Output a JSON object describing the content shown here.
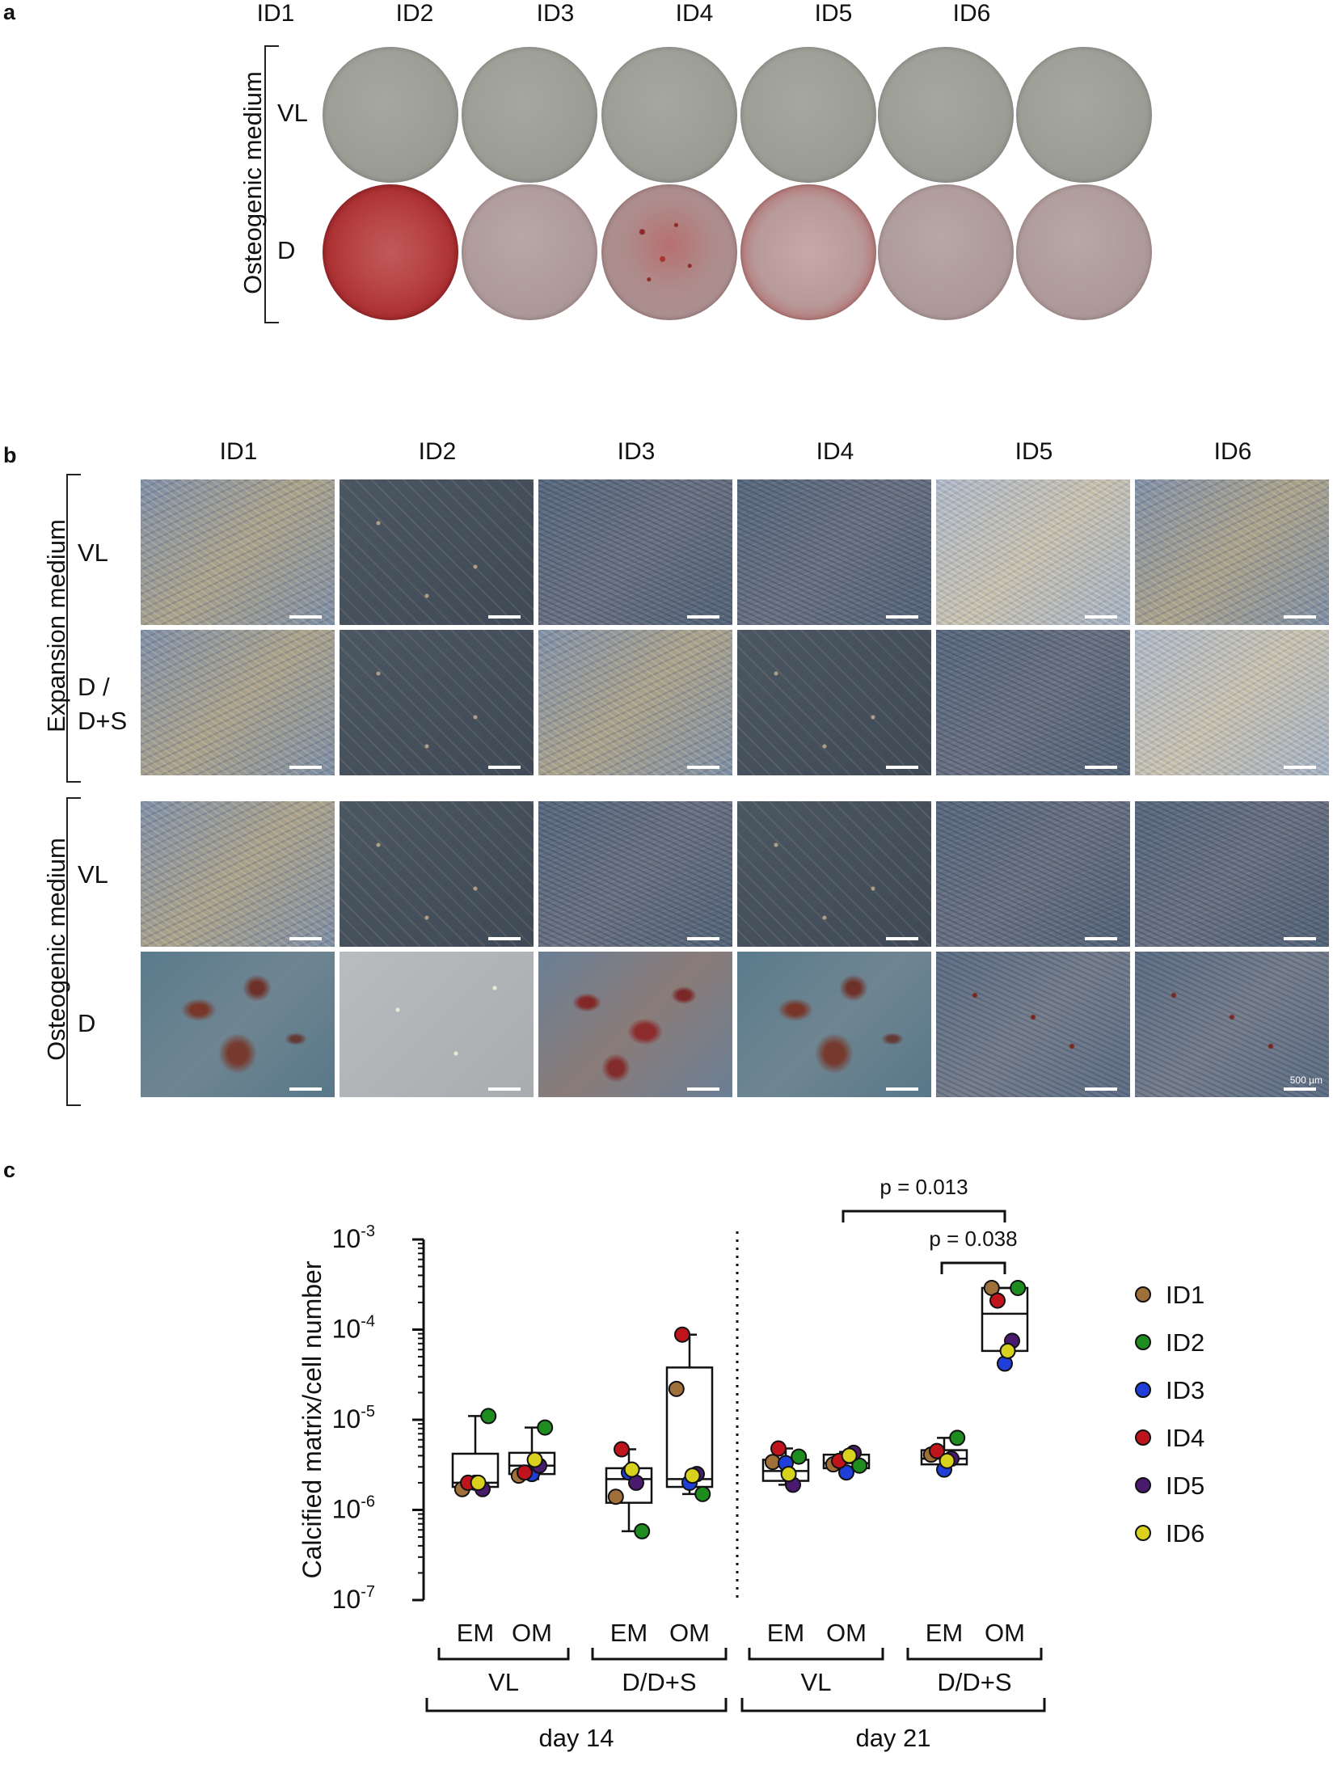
{
  "panel_a": {
    "letter": "a",
    "columns": [
      "ID1",
      "ID2",
      "ID3",
      "ID4",
      "ID5",
      "ID6"
    ],
    "group_label": "Osteogenic medium",
    "rows": [
      "VL",
      "D"
    ]
  },
  "panel_b": {
    "letter": "b",
    "columns": [
      "ID1",
      "ID2",
      "ID3",
      "ID4",
      "ID5",
      "ID6"
    ],
    "groups": [
      "Expansion medium",
      "Osteogenic medium"
    ],
    "rows_expansion": [
      "VL",
      "D /",
      "D+S"
    ],
    "rows_osteogenic": [
      "VL",
      "D"
    ],
    "scale_label": "500 µm"
  },
  "panel_c": {
    "letter": "c"
  },
  "chart_data": {
    "type": "scatter",
    "ylabel": "Calcified matrix/cell number",
    "yscale": "log",
    "ylim": [
      1e-07,
      0.001
    ],
    "ytick_bases": [
      "10",
      "10",
      "10",
      "10",
      "10"
    ],
    "ytick_exponents": [
      "-3",
      "-4",
      "-5",
      "-6",
      "-7"
    ],
    "ytick_values": [
      0.001,
      0.0001,
      1e-05,
      1e-06,
      1e-07
    ],
    "xtick_labels": [
      "EM",
      "OM",
      "EM",
      "OM",
      "EM",
      "OM",
      "EM",
      "OM"
    ],
    "subgroups": [
      "VL",
      "D/D+S",
      "VL",
      "D/D+S"
    ],
    "groups": [
      "day 14",
      "day 21"
    ],
    "annotations": [
      "p = 0.013",
      "p = 0.038"
    ],
    "legend": {
      "position": "right",
      "items": [
        {
          "label": "ID1",
          "color": "#a0703a"
        },
        {
          "label": "ID2",
          "color": "#1e8c1e"
        },
        {
          "label": "ID3",
          "color": "#1f3fd8"
        },
        {
          "label": "ID4",
          "color": "#c0141c"
        },
        {
          "label": "ID5",
          "color": "#4a1a6e"
        },
        {
          "label": "ID6",
          "color": "#d8d21e"
        }
      ]
    },
    "box_stats": [
      {
        "min": 1.7e-06,
        "q1": 1.8e-06,
        "median": 2e-06,
        "q3": 4.2e-06,
        "max": 1.1e-05
      },
      {
        "min": 2.2e-06,
        "q1": 2.5e-06,
        "median": 3.1e-06,
        "q3": 4.3e-06,
        "max": 8.2e-06
      },
      {
        "min": 5.8e-07,
        "q1": 1.2e-06,
        "median": 2.2e-06,
        "q3": 2.9e-06,
        "max": 4.7e-06
      },
      {
        "min": 1.5e-06,
        "q1": 1.8e-06,
        "median": 2.2e-06,
        "q3": 3.8e-05,
        "max": 8.8e-05
      },
      {
        "min": 1.9e-06,
        "q1": 2.1e-06,
        "median": 2.7e-06,
        "q3": 3.6e-06,
        "max": 4.8e-06
      },
      {
        "min": 2.5e-06,
        "q1": 2.9e-06,
        "median": 3.3e-06,
        "q3": 4.1e-06,
        "max": 4.4e-06
      },
      {
        "min": 2.7e-06,
        "q1": 3.2e-06,
        "median": 3.7e-06,
        "q3": 4.6e-06,
        "max": 6.3e-06
      },
      {
        "min": 4.2e-05,
        "q1": 5.8e-05,
        "median": 0.00015,
        "q3": 0.00029,
        "max": 0.00029
      }
    ],
    "series": [
      {
        "name": "ID1",
        "values": [
          1.7e-06,
          2.4e-06,
          1.4e-06,
          2.2e-05,
          3.4e-06,
          3.2e-06,
          4.1e-06,
          0.00029
        ]
      },
      {
        "name": "ID2",
        "values": [
          1.1e-05,
          8.2e-06,
          5.8e-07,
          1.5e-06,
          3.9e-06,
          3.1e-06,
          6.3e-06,
          0.00029
        ]
      },
      {
        "name": "ID3",
        "values": [
          2e-06,
          2.5e-06,
          2.6e-06,
          2e-06,
          3.3e-06,
          2.6e-06,
          2.8e-06,
          4.2e-05
        ]
      },
      {
        "name": "ID4",
        "values": [
          2e-06,
          2.6e-06,
          4.7e-06,
          8.8e-05,
          4.8e-06,
          3.5e-06,
          4.5e-06,
          0.00021
        ]
      },
      {
        "name": "ID5",
        "values": [
          1.7e-06,
          3.1e-06,
          2e-06,
          2.5e-06,
          1.9e-06,
          4.3e-06,
          3.7e-06,
          7.5e-05
        ]
      },
      {
        "name": "ID6",
        "values": [
          2e-06,
          3.6e-06,
          2.8e-06,
          2.4e-06,
          2.5e-06,
          4e-06,
          3.5e-06,
          5.8e-05
        ]
      }
    ]
  }
}
